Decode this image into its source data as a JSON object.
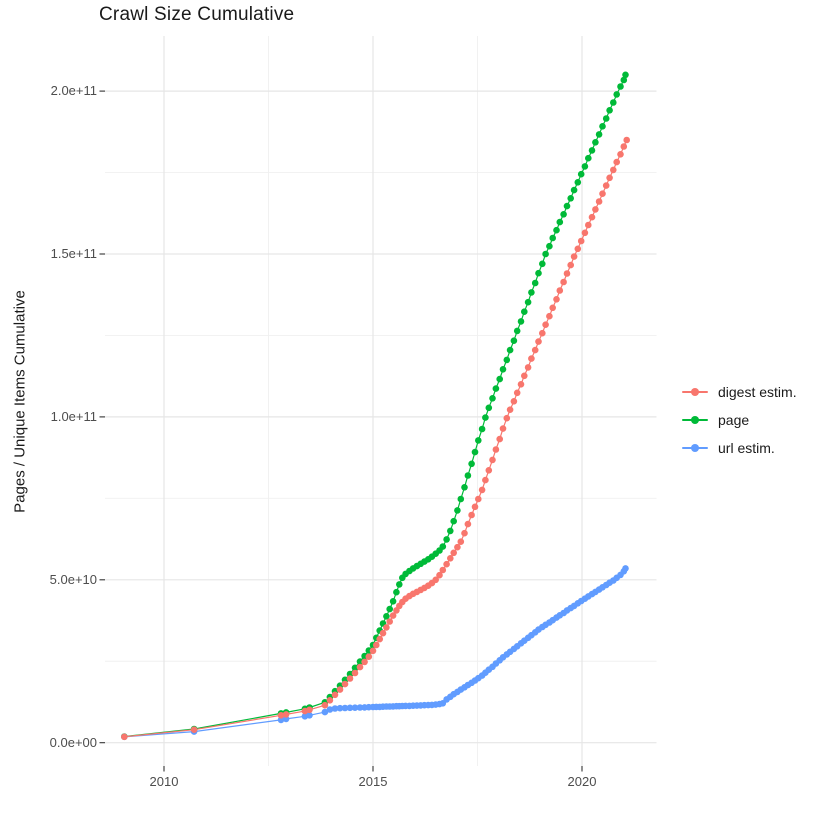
{
  "title": "Crawl Size Cumulative",
  "axes": {
    "y_label": "Pages / Unique Items Cumulative",
    "y_ticks": [
      {
        "value_billions": 0,
        "label": "0.0e+00"
      },
      {
        "value_billions": 50,
        "label": "5.0e+10"
      },
      {
        "value_billions": 100,
        "label": "1.0e+11"
      },
      {
        "value_billions": 150,
        "label": "1.5e+11"
      },
      {
        "value_billions": 200,
        "label": "2.0e+11"
      }
    ],
    "x_ticks": [
      {
        "value_year": 2010,
        "label": "2010"
      },
      {
        "value_year": 2015,
        "label": "2015"
      },
      {
        "value_year": 2020,
        "label": "2020"
      }
    ]
  },
  "legend": {
    "position": "right",
    "entries": [
      "digest estim.",
      "page",
      "url estim."
    ]
  },
  "chart_data": {
    "type": "line",
    "style": "points-with-line",
    "title": "Crawl Size Cumulative",
    "xlabel": "",
    "ylabel": "Pages / Unique Items Cumulative",
    "value_unit_scale": 1000000000,
    "note": "point values are [year, pages in billions (1e9)]",
    "x_range_years": [
      2008.6,
      2021.85
    ],
    "ylim_billions": [
      -7,
      217
    ],
    "x_tick_years": [
      2010,
      2015,
      2020
    ],
    "x_minor_tick_years": [
      2012.5,
      2017.5
    ],
    "y_tick_billions": [
      0,
      50,
      100,
      150,
      200
    ],
    "y_minor_tick_billions": [
      25,
      75,
      125,
      175
    ],
    "grid": true,
    "legend_position": "right",
    "colors": {
      "grid_major": "#e6e6e6",
      "grid_minor": "#f0f0f0",
      "tick": "#333333"
    },
    "series": [
      {
        "name": "digest estim.",
        "color": "#F8766D",
        "points": [
          [
            2009.05,
            1.8
          ],
          [
            2010.72,
            4.0
          ],
          [
            2012.8,
            8.4
          ],
          [
            2012.92,
            8.7
          ],
          [
            2013.37,
            9.7
          ],
          [
            2013.48,
            10.1
          ],
          [
            2013.85,
            11.5
          ],
          [
            2013.97,
            13.0
          ],
          [
            2014.09,
            14.7
          ],
          [
            2014.21,
            16.3
          ],
          [
            2014.33,
            18.0
          ],
          [
            2014.45,
            19.7
          ],
          [
            2014.57,
            21.4
          ],
          [
            2014.69,
            23.2
          ],
          [
            2014.8,
            24.8
          ],
          [
            2014.9,
            26.4
          ],
          [
            2015.0,
            28.2
          ],
          [
            2015.08,
            30.0
          ],
          [
            2015.16,
            31.8
          ],
          [
            2015.24,
            33.6
          ],
          [
            2015.32,
            35.4
          ],
          [
            2015.4,
            37.2
          ],
          [
            2015.48,
            39.0
          ],
          [
            2015.56,
            40.6
          ],
          [
            2015.63,
            42.0
          ],
          [
            2015.7,
            43.2
          ],
          [
            2015.78,
            44.2
          ],
          [
            2015.87,
            45.0
          ],
          [
            2015.96,
            45.7
          ],
          [
            2016.05,
            46.3
          ],
          [
            2016.14,
            46.9
          ],
          [
            2016.23,
            47.5
          ],
          [
            2016.32,
            48.2
          ],
          [
            2016.41,
            49.0
          ],
          [
            2016.5,
            50.0
          ],
          [
            2016.59,
            51.4
          ],
          [
            2016.67,
            53.0
          ],
          [
            2016.76,
            54.8
          ],
          [
            2016.85,
            56.6
          ],
          [
            2016.93,
            58.3
          ],
          [
            2017.02,
            60.0
          ],
          [
            2017.1,
            61.7
          ],
          [
            2017.19,
            64.3
          ],
          [
            2017.27,
            67.1
          ],
          [
            2017.36,
            69.9
          ],
          [
            2017.44,
            72.4
          ],
          [
            2017.52,
            74.8
          ],
          [
            2017.61,
            77.6
          ],
          [
            2017.69,
            80.6
          ],
          [
            2017.77,
            83.6
          ],
          [
            2017.86,
            86.8
          ],
          [
            2017.94,
            90.0
          ],
          [
            2018.03,
            93.2
          ],
          [
            2018.11,
            96.4
          ],
          [
            2018.2,
            99.6
          ],
          [
            2018.28,
            102.2
          ],
          [
            2018.37,
            104.8
          ],
          [
            2018.45,
            107.4
          ],
          [
            2018.54,
            110.0
          ],
          [
            2018.62,
            112.6
          ],
          [
            2018.71,
            115.2
          ],
          [
            2018.79,
            117.9
          ],
          [
            2018.88,
            120.5
          ],
          [
            2018.96,
            123.1
          ],
          [
            2019.05,
            125.7
          ],
          [
            2019.13,
            128.3
          ],
          [
            2019.22,
            130.9
          ],
          [
            2019.3,
            133.5
          ],
          [
            2019.39,
            136.1
          ],
          [
            2019.47,
            138.8
          ],
          [
            2019.56,
            141.4
          ],
          [
            2019.64,
            144.0
          ],
          [
            2019.73,
            146.6
          ],
          [
            2019.81,
            149.2
          ],
          [
            2019.9,
            151.6
          ],
          [
            2019.98,
            154.0
          ],
          [
            2020.07,
            156.5
          ],
          [
            2020.15,
            158.9
          ],
          [
            2020.24,
            161.3
          ],
          [
            2020.32,
            163.7
          ],
          [
            2020.41,
            166.1
          ],
          [
            2020.49,
            168.5
          ],
          [
            2020.58,
            171.0
          ],
          [
            2020.66,
            173.4
          ],
          [
            2020.75,
            175.8
          ],
          [
            2020.83,
            178.2
          ],
          [
            2020.92,
            180.6
          ],
          [
            2021.0,
            183.0
          ],
          [
            2021.07,
            185.0
          ]
        ]
      },
      {
        "name": "page",
        "color": "#00BA38",
        "points": [
          [
            2009.05,
            1.9
          ],
          [
            2010.72,
            4.2
          ],
          [
            2012.8,
            9.0
          ],
          [
            2012.92,
            9.3
          ],
          [
            2013.37,
            10.4
          ],
          [
            2013.48,
            10.8
          ],
          [
            2013.85,
            12.4
          ],
          [
            2013.97,
            14.0
          ],
          [
            2014.09,
            15.8
          ],
          [
            2014.21,
            17.5
          ],
          [
            2014.33,
            19.3
          ],
          [
            2014.45,
            21.1
          ],
          [
            2014.57,
            23.0
          ],
          [
            2014.69,
            24.9
          ],
          [
            2014.8,
            26.6
          ],
          [
            2014.9,
            28.3
          ],
          [
            2015.0,
            30.0
          ],
          [
            2015.08,
            32.2
          ],
          [
            2015.16,
            34.4
          ],
          [
            2015.24,
            36.6
          ],
          [
            2015.32,
            38.8
          ],
          [
            2015.4,
            41.0
          ],
          [
            2015.48,
            43.4
          ],
          [
            2015.56,
            46.2
          ],
          [
            2015.63,
            48.6
          ],
          [
            2015.7,
            50.6
          ],
          [
            2015.78,
            51.8
          ],
          [
            2015.87,
            52.7
          ],
          [
            2015.96,
            53.5
          ],
          [
            2016.05,
            54.2
          ],
          [
            2016.14,
            54.9
          ],
          [
            2016.23,
            55.6
          ],
          [
            2016.32,
            56.3
          ],
          [
            2016.41,
            57.1
          ],
          [
            2016.5,
            58.0
          ],
          [
            2016.59,
            59.0
          ],
          [
            2016.67,
            60.2
          ],
          [
            2016.76,
            62.4
          ],
          [
            2016.85,
            65.0
          ],
          [
            2016.93,
            68.0
          ],
          [
            2017.02,
            71.3
          ],
          [
            2017.1,
            74.8
          ],
          [
            2017.19,
            78.4
          ],
          [
            2017.27,
            82.0
          ],
          [
            2017.36,
            85.6
          ],
          [
            2017.44,
            89.2
          ],
          [
            2017.52,
            92.8
          ],
          [
            2017.61,
            96.3
          ],
          [
            2017.69,
            99.8
          ],
          [
            2017.77,
            102.8
          ],
          [
            2017.86,
            105.7
          ],
          [
            2017.94,
            108.7
          ],
          [
            2018.03,
            111.6
          ],
          [
            2018.11,
            114.6
          ],
          [
            2018.2,
            117.5
          ],
          [
            2018.28,
            120.5
          ],
          [
            2018.37,
            123.4
          ],
          [
            2018.45,
            126.4
          ],
          [
            2018.54,
            129.3
          ],
          [
            2018.62,
            132.3
          ],
          [
            2018.71,
            135.2
          ],
          [
            2018.79,
            138.2
          ],
          [
            2018.88,
            141.1
          ],
          [
            2018.96,
            144.1
          ],
          [
            2019.05,
            147.0
          ],
          [
            2019.13,
            150.0
          ],
          [
            2019.22,
            152.4
          ],
          [
            2019.3,
            154.9
          ],
          [
            2019.39,
            157.3
          ],
          [
            2019.47,
            159.8
          ],
          [
            2019.56,
            162.2
          ],
          [
            2019.64,
            164.7
          ],
          [
            2019.73,
            167.1
          ],
          [
            2019.81,
            169.6
          ],
          [
            2019.9,
            172.0
          ],
          [
            2019.98,
            174.5
          ],
          [
            2020.07,
            176.9
          ],
          [
            2020.15,
            179.4
          ],
          [
            2020.24,
            181.8
          ],
          [
            2020.32,
            184.3
          ],
          [
            2020.41,
            186.7
          ],
          [
            2020.49,
            189.2
          ],
          [
            2020.58,
            191.6
          ],
          [
            2020.66,
            194.1
          ],
          [
            2020.75,
            196.5
          ],
          [
            2020.83,
            199.0
          ],
          [
            2020.92,
            201.4
          ],
          [
            2021.0,
            203.4
          ],
          [
            2021.04,
            205.0
          ]
        ]
      },
      {
        "name": "url estim.",
        "color": "#619CFF",
        "points": [
          [
            2009.05,
            1.8
          ],
          [
            2010.72,
            3.4
          ],
          [
            2012.8,
            7.0
          ],
          [
            2012.92,
            7.3
          ],
          [
            2013.37,
            8.1
          ],
          [
            2013.48,
            8.4
          ],
          [
            2013.85,
            9.4
          ],
          [
            2013.97,
            10.2
          ],
          [
            2014.09,
            10.5
          ],
          [
            2014.21,
            10.6
          ],
          [
            2014.33,
            10.65
          ],
          [
            2014.45,
            10.7
          ],
          [
            2014.57,
            10.75
          ],
          [
            2014.69,
            10.8
          ],
          [
            2014.8,
            10.85
          ],
          [
            2014.9,
            10.9
          ],
          [
            2015.0,
            10.95
          ],
          [
            2015.08,
            11.0
          ],
          [
            2015.16,
            11.0
          ],
          [
            2015.24,
            11.05
          ],
          [
            2015.32,
            11.1
          ],
          [
            2015.4,
            11.1
          ],
          [
            2015.48,
            11.15
          ],
          [
            2015.56,
            11.2
          ],
          [
            2015.63,
            11.2
          ],
          [
            2015.7,
            11.25
          ],
          [
            2015.78,
            11.3
          ],
          [
            2015.87,
            11.3
          ],
          [
            2015.96,
            11.35
          ],
          [
            2016.05,
            11.4
          ],
          [
            2016.14,
            11.45
          ],
          [
            2016.23,
            11.5
          ],
          [
            2016.32,
            11.55
          ],
          [
            2016.41,
            11.6
          ],
          [
            2016.5,
            11.7
          ],
          [
            2016.59,
            11.85
          ],
          [
            2016.67,
            12.1
          ],
          [
            2016.76,
            13.3
          ],
          [
            2016.85,
            14.1
          ],
          [
            2016.93,
            14.9
          ],
          [
            2017.02,
            15.6
          ],
          [
            2017.1,
            16.3
          ],
          [
            2017.19,
            17.0
          ],
          [
            2017.27,
            17.7
          ],
          [
            2017.36,
            18.4
          ],
          [
            2017.44,
            19.1
          ],
          [
            2017.52,
            19.8
          ],
          [
            2017.61,
            20.6
          ],
          [
            2017.69,
            21.5
          ],
          [
            2017.77,
            22.4
          ],
          [
            2017.86,
            23.3
          ],
          [
            2017.94,
            24.3
          ],
          [
            2018.03,
            25.3
          ],
          [
            2018.11,
            26.2
          ],
          [
            2018.2,
            27.1
          ],
          [
            2018.28,
            27.9
          ],
          [
            2018.37,
            28.8
          ],
          [
            2018.45,
            29.6
          ],
          [
            2018.54,
            30.5
          ],
          [
            2018.62,
            31.3
          ],
          [
            2018.71,
            32.2
          ],
          [
            2018.79,
            33.0
          ],
          [
            2018.88,
            33.9
          ],
          [
            2018.96,
            34.7
          ],
          [
            2019.05,
            35.5
          ],
          [
            2019.13,
            36.2
          ],
          [
            2019.22,
            36.9
          ],
          [
            2019.3,
            37.6
          ],
          [
            2019.39,
            38.4
          ],
          [
            2019.47,
            39.1
          ],
          [
            2019.56,
            39.8
          ],
          [
            2019.64,
            40.6
          ],
          [
            2019.73,
            41.3
          ],
          [
            2019.81,
            42.0
          ],
          [
            2019.9,
            42.8
          ],
          [
            2019.98,
            43.5
          ],
          [
            2020.07,
            44.2
          ],
          [
            2020.15,
            44.9
          ],
          [
            2020.24,
            45.6
          ],
          [
            2020.32,
            46.3
          ],
          [
            2020.41,
            47.0
          ],
          [
            2020.49,
            47.7
          ],
          [
            2020.58,
            48.4
          ],
          [
            2020.66,
            49.1
          ],
          [
            2020.75,
            49.8
          ],
          [
            2020.83,
            50.6
          ],
          [
            2020.92,
            51.5
          ],
          [
            2021.0,
            52.6
          ],
          [
            2021.04,
            53.5
          ]
        ]
      }
    ]
  }
}
